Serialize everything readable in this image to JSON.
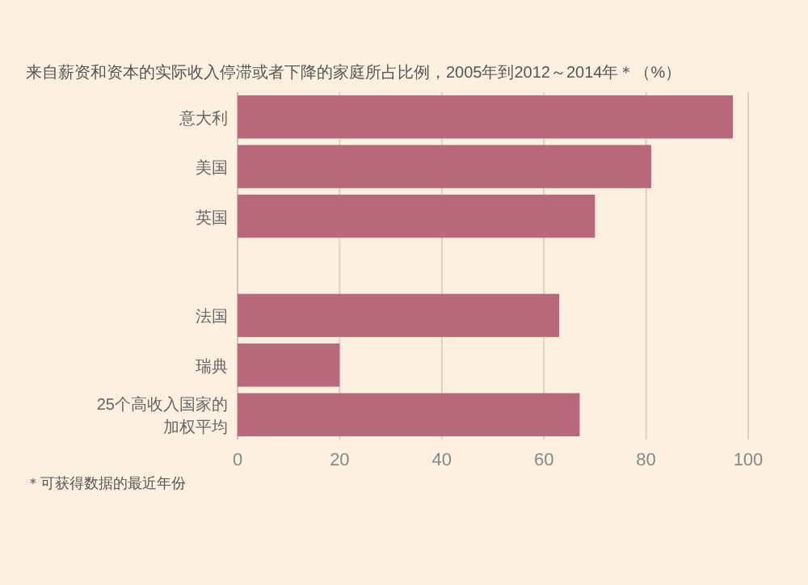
{
  "chart_data": {
    "type": "bar",
    "orientation": "horizontal",
    "title": "来自薪资和资本的实际收入停滞或者下降的家庭所占比例，2005年到2012～2014年＊（%）",
    "categories": [
      "意大利",
      "美国",
      "英国",
      null,
      "法国",
      "瑞典",
      "25个高收入国家的加权平均"
    ],
    "values": [
      97,
      81,
      70,
      null,
      63,
      20,
      67
    ],
    "color": "#b86a7c",
    "xlim": [
      0,
      100
    ],
    "xticks": [
      0,
      20,
      40,
      60,
      80,
      100
    ],
    "grid": "x",
    "annotations": [
      "＊可获得数据的最近年份"
    ]
  }
}
